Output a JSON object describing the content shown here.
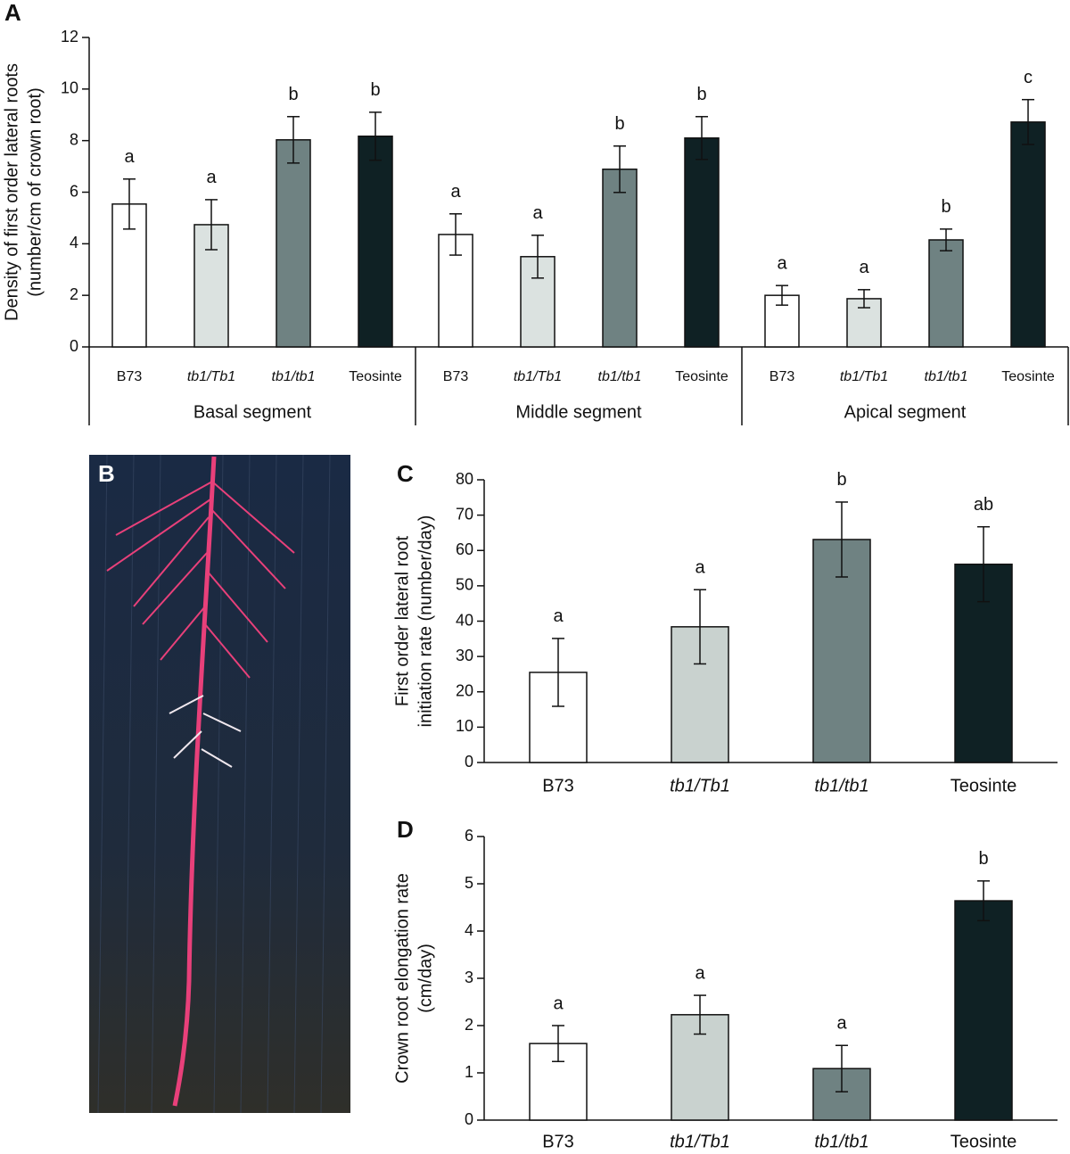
{
  "chart_data": [
    {
      "type": "bar",
      "panel": "A",
      "ylabel": [
        "Density of first order lateral roots",
        "(number/cm of crown root)"
      ],
      "ylim": [
        0,
        12
      ],
      "yticks": [
        0,
        2,
        4,
        6,
        8,
        10,
        12
      ],
      "colors": [
        "#ffffff",
        "#dbe2e0",
        "#6f8282",
        "#0f2124"
      ],
      "italic": [
        false,
        true,
        true,
        false
      ],
      "groups": [
        {
          "name": "Basal segment",
          "categories": [
            "B73",
            "tb1/Tb1",
            "tb1/tb1",
            "Teosinte"
          ],
          "values": [
            5.54,
            4.74,
            8.03,
            8.17
          ],
          "errors": [
            0.97,
            0.97,
            0.9,
            0.93
          ],
          "letters": [
            "a",
            "a",
            "b",
            "b"
          ]
        },
        {
          "name": "Middle segment",
          "categories": [
            "B73",
            "tb1/Tb1",
            "tb1/tb1",
            "Teosinte"
          ],
          "values": [
            4.36,
            3.5,
            6.89,
            8.1
          ],
          "errors": [
            0.8,
            0.83,
            0.9,
            0.83
          ],
          "letters": [
            "a",
            "a",
            "b",
            "b"
          ]
        },
        {
          "name": "Apical segment",
          "categories": [
            "B73",
            "tb1/Tb1",
            "tb1/tb1",
            "Teosinte"
          ],
          "values": [
            2.0,
            1.87,
            4.15,
            8.72
          ],
          "errors": [
            0.38,
            0.35,
            0.42,
            0.87
          ],
          "letters": [
            "a",
            "a",
            "b",
            "c"
          ]
        }
      ]
    },
    {
      "type": "bar",
      "panel": "C",
      "ylabel": [
        "First order lateral root",
        "initiation rate (number/day)"
      ],
      "ylim": [
        0,
        80
      ],
      "yticks": [
        0,
        10,
        20,
        30,
        40,
        50,
        60,
        70,
        80
      ],
      "colors": [
        "#ffffff",
        "#c9d2cf",
        "#6f8282",
        "#0f2124"
      ],
      "italic": [
        false,
        true,
        true,
        false
      ],
      "categories": [
        "B73",
        "tb1/Tb1",
        "tb1/tb1",
        "Teosinte"
      ],
      "values": [
        25.5,
        38.4,
        63.1,
        56.1
      ],
      "errors": [
        9.6,
        10.5,
        10.6,
        10.6
      ],
      "letters": [
        "a",
        "a",
        "b",
        "ab"
      ]
    },
    {
      "type": "bar",
      "panel": "D",
      "ylabel": [
        "Crown root elongation rate",
        "(cm/day)"
      ],
      "ylim": [
        0,
        6
      ],
      "yticks": [
        0,
        1,
        2,
        3,
        4,
        5,
        6
      ],
      "colors": [
        "#ffffff",
        "#c9d2cf",
        "#6f8282",
        "#0f2124"
      ],
      "italic": [
        false,
        true,
        true,
        false
      ],
      "categories": [
        "B73",
        "tb1/Tb1",
        "tb1/tb1",
        "Teosinte"
      ],
      "values": [
        1.62,
        2.23,
        1.09,
        4.64
      ],
      "errors": [
        0.38,
        0.41,
        0.49,
        0.42
      ],
      "letters": [
        "a",
        "a",
        "a",
        "b"
      ]
    }
  ],
  "photo": {
    "panel": "B"
  }
}
